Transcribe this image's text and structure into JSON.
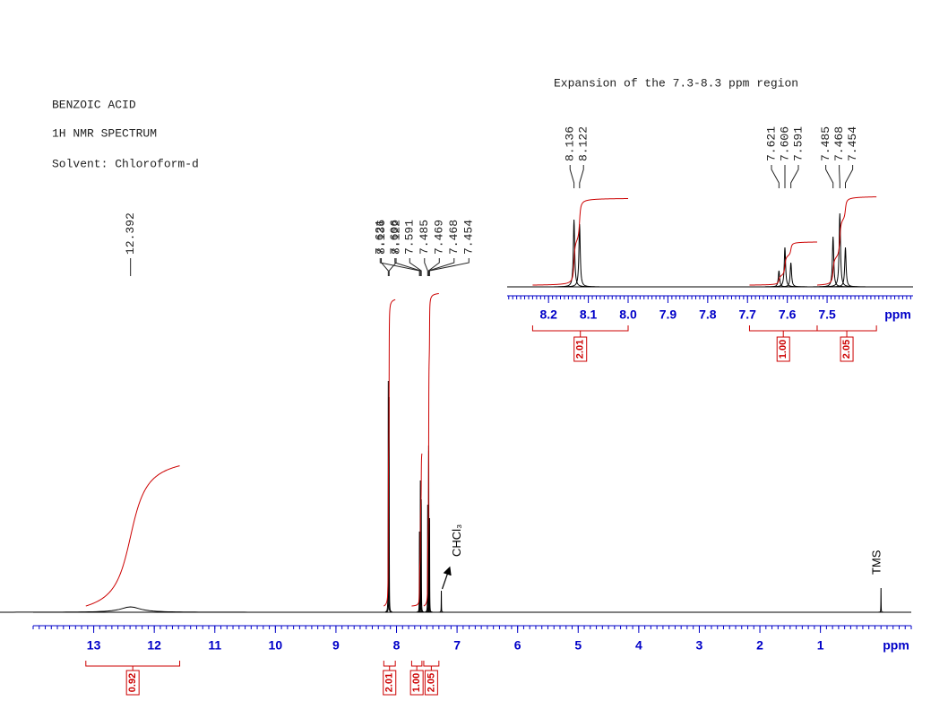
{
  "chart_data": [
    {
      "type": "line",
      "title": "BENZOIC ACID",
      "subtitle": "1H NMR SPECTRUM",
      "note": "Solvent: Chloroform-d",
      "xlabel": "ppm",
      "xlim": [
        14,
        -0.5
      ],
      "xticks": [
        13,
        12,
        11,
        10,
        9,
        8,
        7,
        6,
        5,
        4,
        3,
        2,
        1
      ],
      "ylim": [
        0,
        100
      ],
      "x": [
        12.392,
        8.136,
        8.122,
        7.621,
        7.606,
        7.591,
        7.485,
        7.469,
        7.468,
        7.454
      ],
      "values": [
        2,
        86,
        80,
        30,
        49,
        42,
        40,
        62,
        60,
        35
      ],
      "widths": [
        0.2,
        0.002,
        0.002,
        0.002,
        0.002,
        0.002,
        0.002,
        0.002,
        0.002,
        0.002
      ],
      "color": "#000000",
      "annotations": [
        {
          "text": "CHCl₃",
          "x": 7.26,
          "value": 8,
          "arrow": true
        },
        {
          "text": "TMS",
          "x": 0,
          "value": 9,
          "arrow": false
        }
      ],
      "integrals": {
        "ranges": [
          [
            13.13,
            11.58
          ],
          [
            8.21,
            8.02
          ],
          [
            7.75,
            7.58
          ],
          [
            7.55,
            7.3
          ]
        ],
        "values": [
          0.92,
          2.01,
          1,
          2.05
        ],
        "value_labels": [
          "0.92",
          "2.01",
          "1.00",
          "2.05"
        ]
      },
      "integral_color": "#cc0000",
      "tick_color": "#0000c8"
    },
    {
      "type": "line",
      "title": "Expansion of the 7.3-8.3 ppm region",
      "xlabel": "ppm",
      "xlim": [
        8.304,
        7.284
      ],
      "xticks": [
        8.2,
        8.1,
        {
          "value": 8,
          "label": "8.0"
        },
        7.9,
        7.8,
        7.7,
        7.6,
        7.5
      ],
      "ylim": [
        0,
        100
      ],
      "x": [
        8.136,
        8.122,
        7.621,
        7.606,
        7.591,
        7.485,
        7.468,
        7.454
      ],
      "values": [
        75,
        70,
        18,
        44,
        27,
        56,
        82,
        44
      ],
      "widths": [
        0.002,
        0.002,
        0.002,
        0.002,
        0.002,
        0.002,
        0.002,
        0.002
      ],
      "color": "#000000",
      "integrals": {
        "ranges": [
          [
            8.24,
            8.0
          ],
          [
            7.695,
            7.525
          ],
          [
            7.525,
            7.376
          ]
        ],
        "values": [
          2.01,
          1,
          2.05
        ],
        "value_labels": [
          "2.01",
          "1.00",
          "2.05"
        ]
      },
      "integral_color": "#cc0000",
      "tick_color": "#0000c8"
    }
  ]
}
